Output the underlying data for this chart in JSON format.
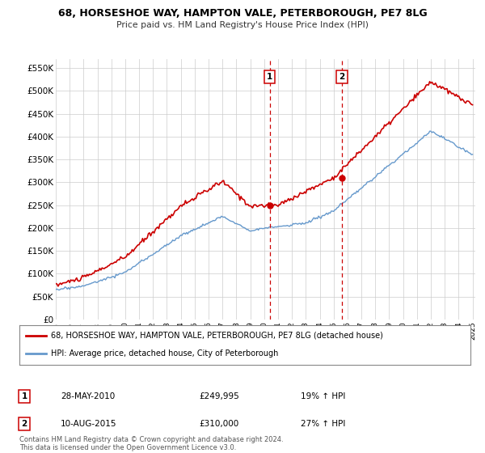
{
  "title": "68, HORSESHOE WAY, HAMPTON VALE, PETERBOROUGH, PE7 8LG",
  "subtitle": "Price paid vs. HM Land Registry's House Price Index (HPI)",
  "ylim": [
    0,
    570000
  ],
  "yticks": [
    0,
    50000,
    100000,
    150000,
    200000,
    250000,
    300000,
    350000,
    400000,
    450000,
    500000,
    550000
  ],
  "ytick_labels": [
    "£0",
    "£50K",
    "£100K",
    "£150K",
    "£200K",
    "£250K",
    "£300K",
    "£350K",
    "£400K",
    "£450K",
    "£500K",
    "£550K"
  ],
  "x_start_year": 1995,
  "x_end_year": 2025,
  "red_color": "#cc0000",
  "blue_color": "#6699cc",
  "marker1_year": 2010.4,
  "marker2_year": 2015.6,
  "marker1_value": 249995,
  "marker2_value": 310000,
  "marker1_date": "28-MAY-2010",
  "marker2_date": "10-AUG-2015",
  "marker1_hpi": "19% ↑ HPI",
  "marker2_hpi": "27% ↑ HPI",
  "legend_line1": "68, HORSESHOE WAY, HAMPTON VALE, PETERBOROUGH, PE7 8LG (detached house)",
  "legend_line2": "HPI: Average price, detached house, City of Peterborough",
  "footer1": "Contains HM Land Registry data © Crown copyright and database right 2024.",
  "footer2": "This data is licensed under the Open Government Licence v3.0."
}
